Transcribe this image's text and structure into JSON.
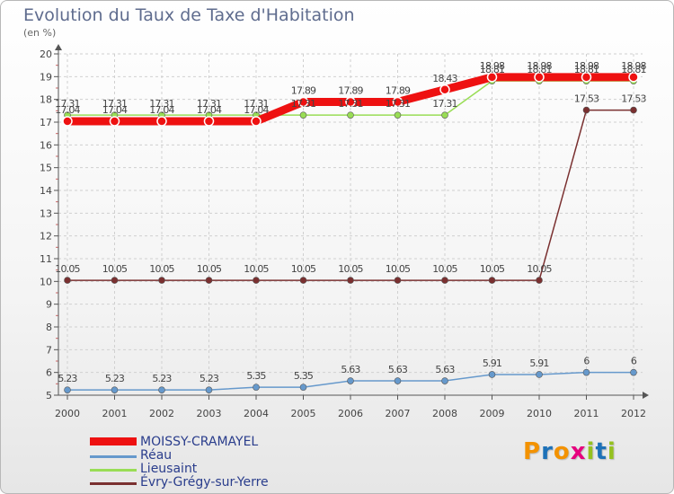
{
  "title": "Evolution du Taux de Taxe d'Habitation",
  "unit_label": "(en %)",
  "brand": {
    "logo_text": "Proxiti",
    "letters": [
      "P",
      "r",
      "o",
      "x",
      "i",
      "t",
      "i"
    ],
    "letter_colors": [
      "#f39200",
      "#1d71b8",
      "#f39200",
      "#e6007e",
      "#95c11f",
      "#1d71b8",
      "#95c11f"
    ]
  },
  "colors": {
    "background": "#ffffff",
    "axis": "#555555",
    "grid": "#d0d0d0",
    "label": "#444444"
  },
  "chart_data": {
    "type": "line",
    "title": "Evolution du Taux de Taxe d'Habitation",
    "ylabel": "(en %)",
    "xlabel": "",
    "ylim": [
      5,
      20
    ],
    "yticks": [
      5,
      6,
      7,
      8,
      9,
      10,
      11,
      12,
      13,
      14,
      15,
      16,
      17,
      18,
      19,
      20
    ],
    "categories": [
      "2000",
      "2001",
      "2002",
      "2003",
      "2004",
      "2005",
      "2006",
      "2007",
      "2008",
      "2009",
      "2010",
      "2011",
      "2012"
    ],
    "series": [
      {
        "name": "MOISSY-CRAMAYEL",
        "color": "#ee1111",
        "emphasis": "thick",
        "values": [
          17.04,
          17.04,
          17.04,
          17.04,
          17.04,
          17.89,
          17.89,
          17.89,
          18.43,
          18.98,
          18.98,
          18.98,
          18.98
        ],
        "labels": [
          "17.04",
          "17.04",
          "17.04",
          "17.04",
          "17.04",
          "17.89",
          "17.89",
          "17.89",
          "18.43",
          "18.98",
          "18.98",
          "18.98",
          "18.98"
        ]
      },
      {
        "name": "Réau",
        "color": "#6699cc",
        "emphasis": "normal",
        "values": [
          5.23,
          5.23,
          5.23,
          5.23,
          5.35,
          5.35,
          5.63,
          5.63,
          5.63,
          5.91,
          5.91,
          6,
          6
        ],
        "labels": [
          "5.23",
          "5.23",
          "5.23",
          "5.23",
          "5.35",
          "5.35",
          "5.63",
          "5.63",
          "5.63",
          "5.91",
          "5.91",
          "6",
          "6"
        ]
      },
      {
        "name": "Lieusaint",
        "color": "#99dd55",
        "emphasis": "normal",
        "values": [
          17.31,
          17.31,
          17.31,
          17.31,
          17.31,
          17.31,
          17.31,
          17.31,
          17.31,
          18.81,
          18.81,
          18.81,
          18.81
        ],
        "labels": [
          "17.31",
          "17.31",
          "17.31",
          "17.31",
          "17.31",
          "17.31",
          "17.31",
          "17.31",
          "17.31",
          "18.81",
          "18.81",
          "18.81",
          "18.81"
        ]
      },
      {
        "name": "Évry-Grégy-sur-Yerre",
        "color": "#7a3030",
        "emphasis": "normal",
        "values": [
          10.05,
          10.05,
          10.05,
          10.05,
          10.05,
          10.05,
          10.05,
          10.05,
          10.05,
          10.05,
          10.05,
          17.53,
          17.53
        ],
        "labels": [
          "10.05",
          "10.05",
          "10.05",
          "10.05",
          "10.05",
          "10.05",
          "10.05",
          "10.05",
          "10.05",
          "10.05",
          "10.05",
          "17.53",
          "17.53"
        ]
      }
    ]
  }
}
